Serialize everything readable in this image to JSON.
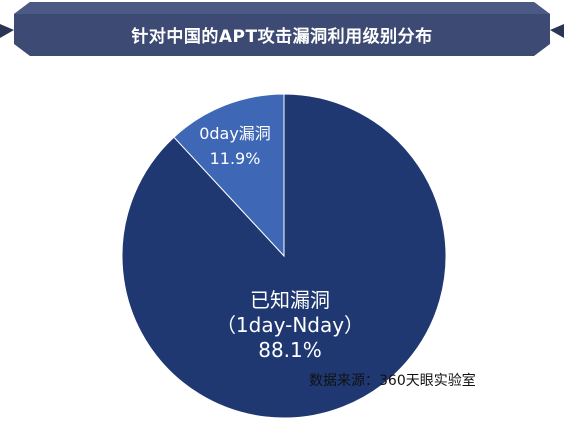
{
  "title": "针对中国的APT攻击漏洞利用级别分布",
  "source_note": "数据来源：360天眼实验室",
  "colors": {
    "banner": "#3d4b74",
    "banner_dark": "#2a3556",
    "slice_known": "#1f3872",
    "slice_0day": "#3e67b6",
    "text_on_slice": "#ffffff"
  },
  "chart_data": {
    "type": "pie",
    "title": "针对中国的APT攻击漏洞利用级别分布",
    "slices": [
      {
        "name": "0day漏洞",
        "label_line1": "0day漏洞",
        "label_line2": "",
        "value": 11.9,
        "value_label": "11.9%",
        "color": "#3e67b6"
      },
      {
        "name": "已知漏洞（1day-Nday）",
        "label_line1": "已知漏洞",
        "label_line2": "（1day-Nday）",
        "value": 88.1,
        "value_label": "88.1%",
        "color": "#1f3872"
      }
    ],
    "start": "12 o'clock, slices run counterclockwise",
    "legend": "none"
  }
}
